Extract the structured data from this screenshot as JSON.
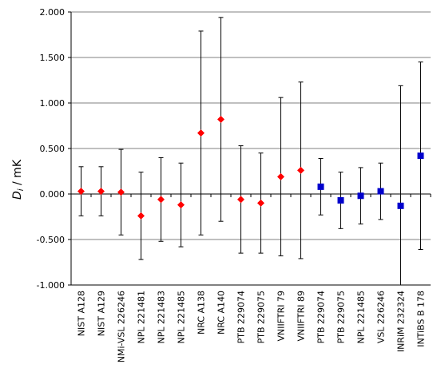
{
  "chart_data": {
    "type": "scatter",
    "ylabel_main": "D",
    "ylabel_sub": "i",
    "ylabel_unit": " / mK",
    "ylim": [
      -1.0,
      2.0
    ],
    "yticks": [
      2.0,
      1.5,
      1.0,
      0.5,
      0.0,
      -0.5,
      -1.0
    ],
    "ytick_labels": [
      "2.000",
      "1.500",
      "1.000",
      "0.500",
      "0.000",
      "-0.500",
      "-1.000"
    ],
    "grid": true,
    "categories": [
      "NIST A128",
      "NIST A129",
      "NMi-VSL 226246",
      "NPL 221481",
      "NPL 221483",
      "NPL 221485",
      "NRC A138",
      "NRC A140",
      "PTB 229074",
      "PTB 229075",
      "VNIIFTRI 79",
      "VNIIFTRI 89",
      "PTB 229074",
      "PTB 229075",
      "NPL 221485",
      "VSL 226246",
      "INRiM 232324",
      "INTiBS B 178"
    ],
    "series": [
      {
        "marker": "diamond",
        "color": "#ff0000",
        "points": [
          {
            "i": 0,
            "y": 0.03,
            "lo": -0.24,
            "hi": 0.3
          },
          {
            "i": 1,
            "y": 0.03,
            "lo": -0.24,
            "hi": 0.3
          },
          {
            "i": 2,
            "y": 0.02,
            "lo": -0.45,
            "hi": 0.49
          },
          {
            "i": 3,
            "y": -0.24,
            "lo": -0.72,
            "hi": 0.24
          },
          {
            "i": 4,
            "y": -0.06,
            "lo": -0.52,
            "hi": 0.4
          },
          {
            "i": 5,
            "y": -0.12,
            "lo": -0.58,
            "hi": 0.34
          },
          {
            "i": 6,
            "y": 0.67,
            "lo": -0.45,
            "hi": 1.79
          },
          {
            "i": 7,
            "y": 0.82,
            "lo": -0.3,
            "hi": 1.94
          },
          {
            "i": 8,
            "y": -0.06,
            "lo": -0.65,
            "hi": 0.53
          },
          {
            "i": 9,
            "y": -0.1,
            "lo": -0.65,
            "hi": 0.45
          },
          {
            "i": 10,
            "y": 0.19,
            "lo": -0.68,
            "hi": 1.06
          },
          {
            "i": 11,
            "y": 0.26,
            "lo": -0.71,
            "hi": 1.23
          }
        ]
      },
      {
        "marker": "square",
        "color": "#0000cc",
        "points": [
          {
            "i": 12,
            "y": 0.08,
            "lo": -0.23,
            "hi": 0.39
          },
          {
            "i": 13,
            "y": -0.07,
            "lo": -0.38,
            "hi": 0.24
          },
          {
            "i": 14,
            "y": -0.02,
            "lo": -0.33,
            "hi": 0.29
          },
          {
            "i": 15,
            "y": 0.03,
            "lo": -0.28,
            "hi": 0.34
          },
          {
            "i": 16,
            "y": -0.13,
            "lo": -1.0,
            "hi": 1.19
          },
          {
            "i": 17,
            "y": 0.42,
            "lo": -0.61,
            "hi": 1.45
          }
        ]
      }
    ]
  }
}
